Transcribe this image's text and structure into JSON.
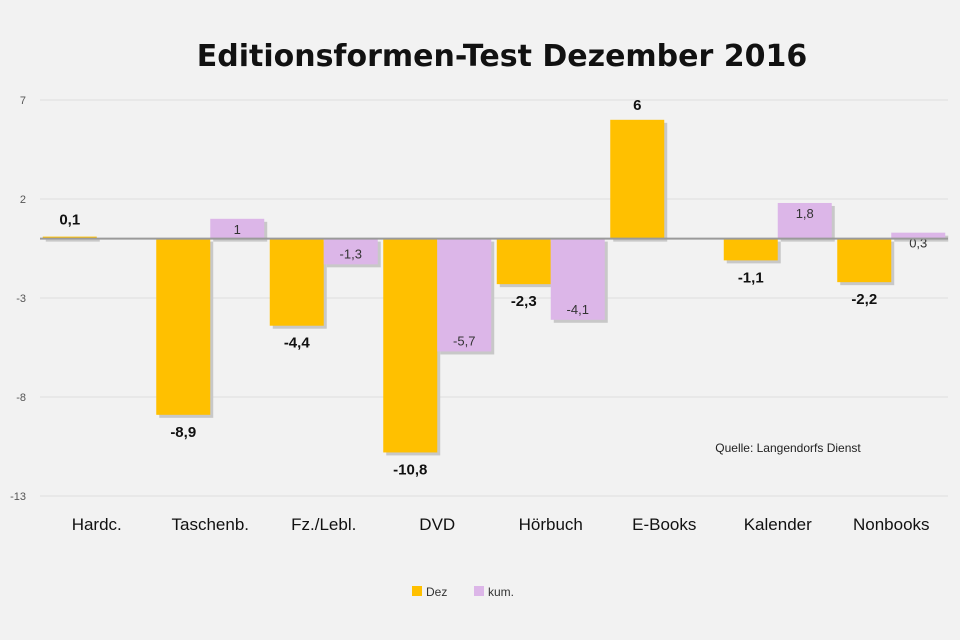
{
  "chart_data": {
    "type": "bar",
    "title": "Editionsformen-Test Dezember 2016",
    "source_note": "Quelle: Langendorfs Dienst",
    "categories": [
      "Hardc.",
      "Taschenb.",
      "Fz./Lebl.",
      "DVD",
      "Hörbuch",
      "E-Books",
      "Kalender",
      "Nonbooks"
    ],
    "series": [
      {
        "name": "Dez",
        "color": "#ffc000",
        "values": [
          0.1,
          -8.9,
          -4.4,
          -10.8,
          -2.3,
          6,
          -1.1,
          -2.2
        ],
        "labels": [
          "0,1",
          "-8,9",
          "-4,4",
          "-10,8",
          "-2,3",
          "6",
          "-1,1",
          "-2,2"
        ]
      },
      {
        "name": "kum.",
        "color": "#dcb6e8",
        "values": [
          null,
          1,
          -1.3,
          -5.7,
          -4.1,
          null,
          1.8,
          0.3
        ],
        "labels": [
          "",
          "1",
          "-1,3",
          "-5,7",
          "-4,1",
          "",
          "1,8",
          "0,3"
        ]
      }
    ],
    "y_ticks": [
      "7",
      "2",
      "-3",
      "-8",
      "-13"
    ],
    "ylim": [
      -13,
      7
    ],
    "grid": true,
    "legend_position": "bottom-center"
  }
}
